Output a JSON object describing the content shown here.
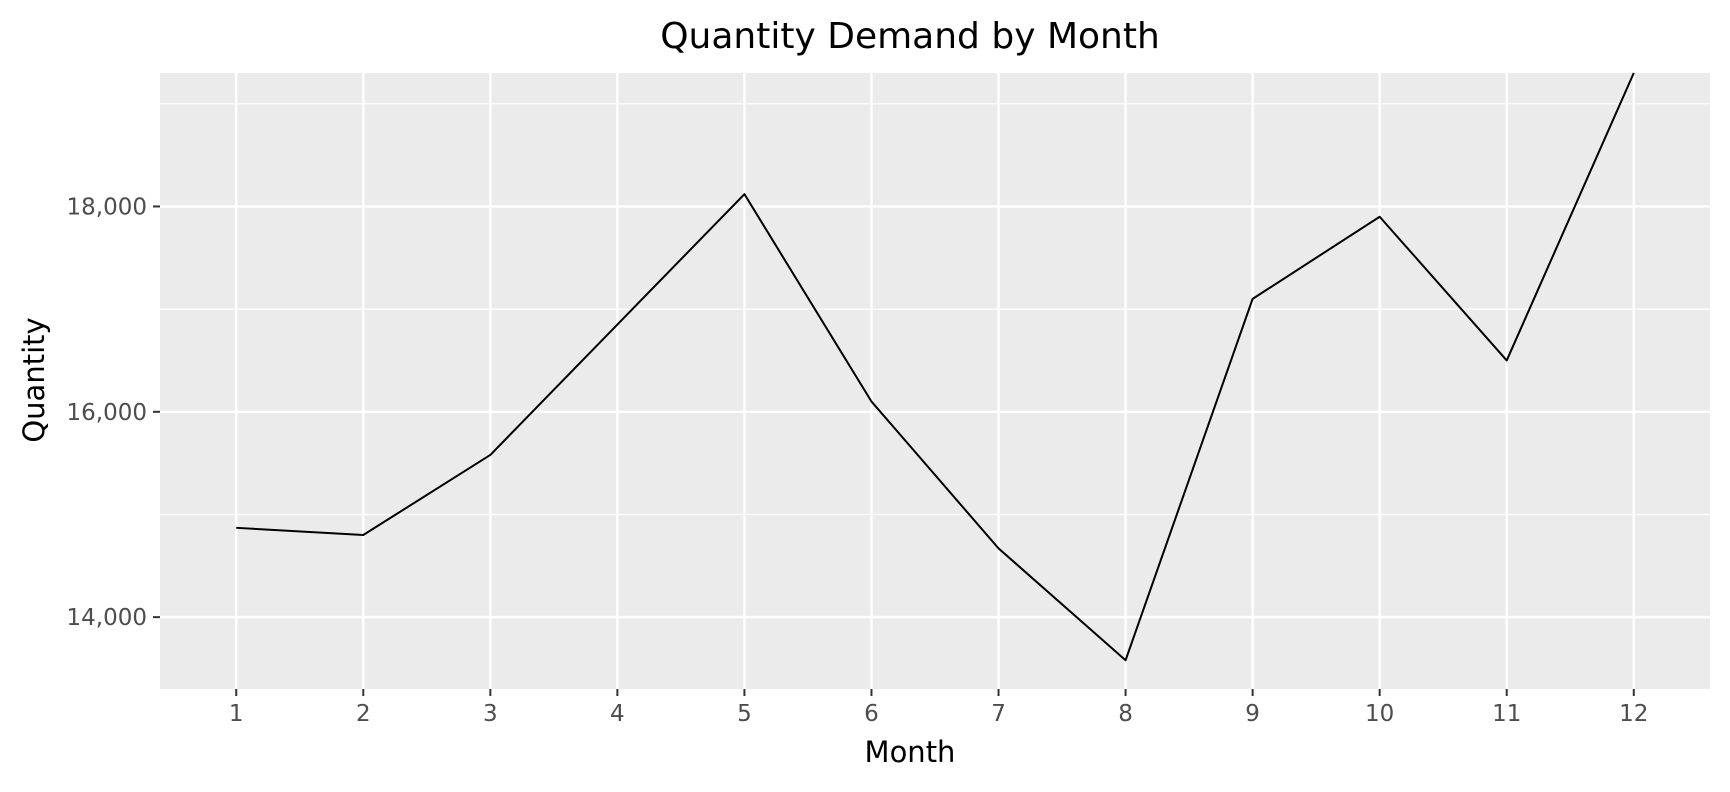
{
  "chart_data": {
    "type": "line",
    "title": "Quantity Demand by Month",
    "xlabel": "Month",
    "ylabel": "Quantity",
    "x": [
      1,
      2,
      3,
      4,
      5,
      6,
      7,
      8,
      9,
      10,
      11,
      12
    ],
    "x_tick_labels": [
      "1",
      "2",
      "3",
      "4",
      "5",
      "6",
      "7",
      "8",
      "9",
      "10",
      "11",
      "12"
    ],
    "y_ticks": [
      14000,
      16000,
      18000
    ],
    "y_tick_labels": [
      "14,000",
      "16,000",
      "18,000"
    ],
    "xlim": [
      0.4,
      12.6
    ],
    "ylim": [
      13300,
      19300
    ],
    "series": [
      {
        "values": [
          14870,
          14800,
          15580,
          16850,
          18120,
          16100,
          14670,
          13580,
          17100,
          17900,
          16500,
          19300
        ]
      }
    ],
    "grid": true,
    "legend": "none",
    "colors": {
      "panel_background": "#ebebeb",
      "grid_major": "#ffffff",
      "line": "#000000",
      "tick_text": "#4d4d4d"
    }
  }
}
